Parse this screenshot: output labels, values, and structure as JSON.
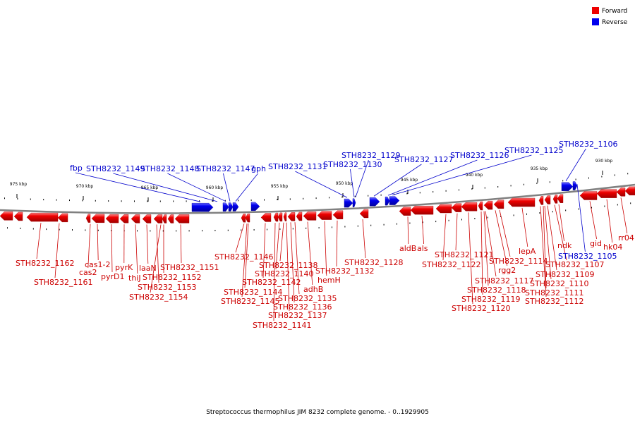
{
  "caption": "Streptococcus thermophilus JIM 8232 complete genome. - 0..1929905",
  "legend": [
    {
      "label": "Forward",
      "color": "#ee0000"
    },
    {
      "label": "Reverse",
      "color": "#0000ee"
    }
  ],
  "colors": {
    "forward": "#ee0000",
    "reverse": "#0000ee",
    "backbone": "#808080"
  },
  "scale_ticks": [
    "975 kbp",
    "970 kbp",
    "965 kbp",
    "960 kbp",
    "955 kbp",
    "950 kbp",
    "945 kbp",
    "940 kbp",
    "935 kbp",
    "930 kbp"
  ],
  "forward_labels": [
    "STH8232_1162",
    "STH8232_1161",
    "cas2",
    "cas1-2",
    "pyrD1",
    "pyrK",
    "thiJ",
    "laaN",
    "STH8232_1153",
    "STH8232_1154",
    "STH8232_1152",
    "STH8232_1151",
    "STH8232_1146",
    "STH8232_1145",
    "STH8232_1144",
    "STH8232_1142",
    "STH8232_1141",
    "STH8232_1140",
    "STH8232_1138",
    "STH8232_1137",
    "STH8232_1136",
    "STH8232_1135",
    "adhB",
    "hemH",
    "STH8232_1132",
    "STH8232_1128",
    "aldB",
    "als",
    "STH8232_1122",
    "STH8232_1121",
    "STH8232_1120",
    "STH8232_1119",
    "STH8232_1118",
    "STH8232_1117",
    "rgg2",
    "STH8232_1114",
    "lepA",
    "STH8232_1112",
    "STH8232_1111",
    "STH8232_1110",
    "STH8232_1109",
    "STH8232_1107",
    "ndk",
    "gid",
    "hk04",
    "rr04"
  ],
  "reverse_labels": [
    "fbp",
    "STH8232_1149",
    "STH8232_1148",
    "STH8232_1147",
    "gph",
    "STH8232_1131",
    "STH8232_1130",
    "STH8232_1129",
    "STH8232_1127",
    "STH8232_1126",
    "STH8232_1125",
    "STH8232_1106",
    "STH8232_1105"
  ]
}
